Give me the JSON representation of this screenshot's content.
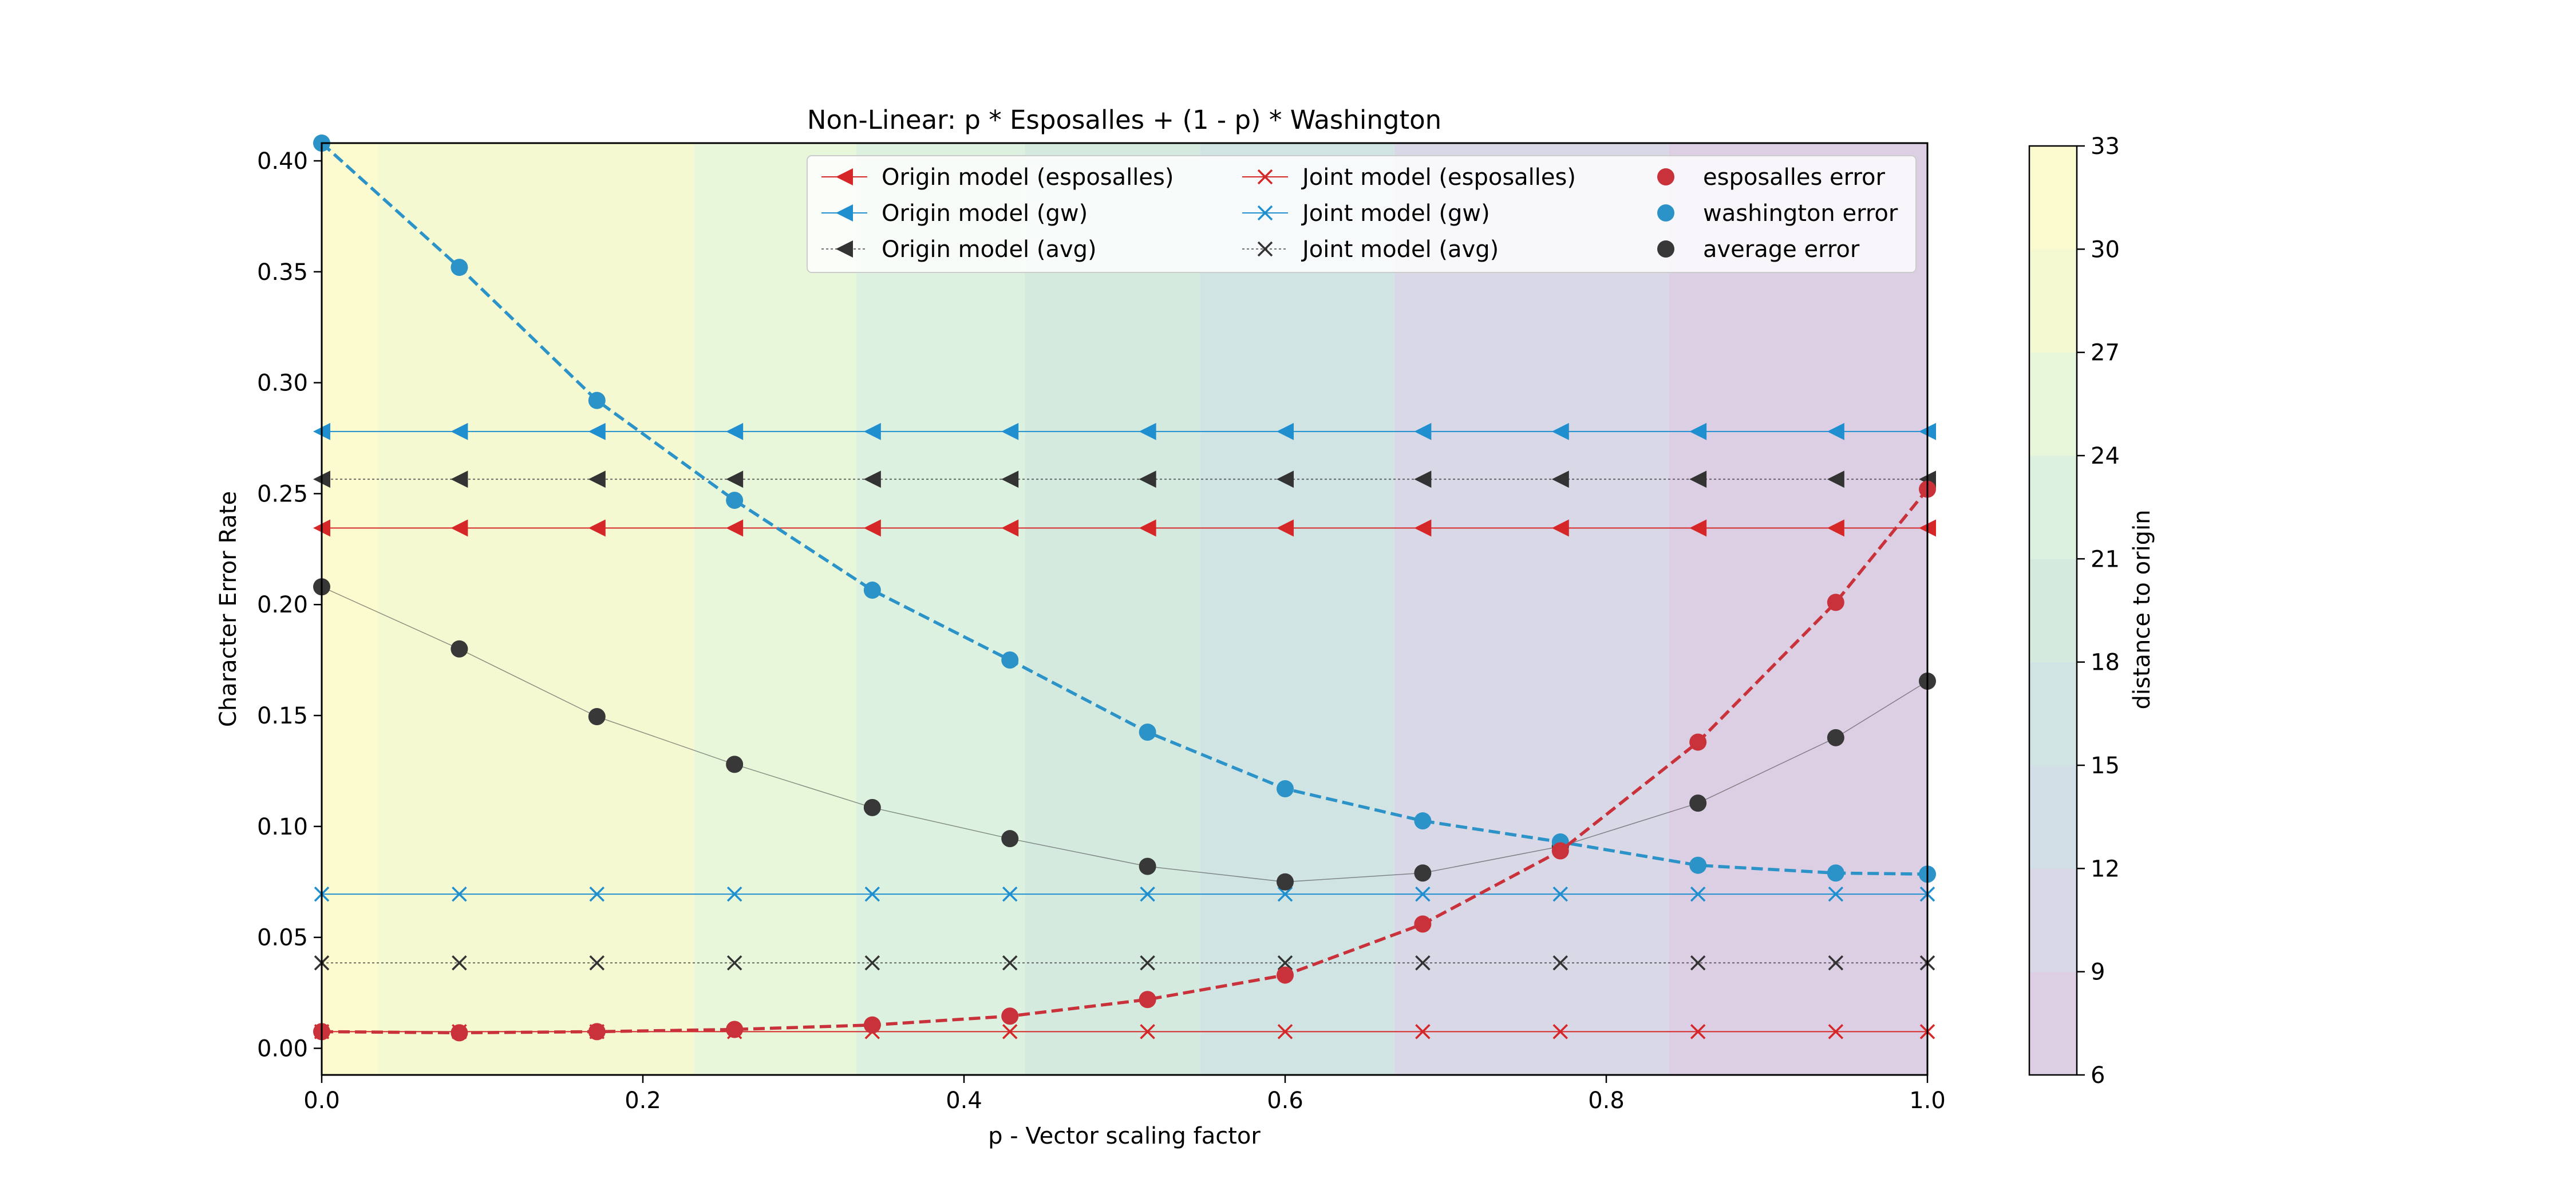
{
  "chart_data": {
    "type": "line",
    "title": "Non-Linear: p * Esposalles + (1 - p) * Washington",
    "xlabel": "p - Vector scaling factor",
    "ylabel": "Character Error Rate",
    "xlim": [
      0.0,
      1.0
    ],
    "ylim": [
      -0.012,
      0.408
    ],
    "x_ticks": [
      {
        "value": 0.0,
        "label": "0.0"
      },
      {
        "value": 0.2,
        "label": "0.2"
      },
      {
        "value": 0.4,
        "label": "0.4"
      },
      {
        "value": 0.6,
        "label": "0.6"
      },
      {
        "value": 0.8,
        "label": "0.8"
      },
      {
        "value": 1.0,
        "label": "1.0"
      }
    ],
    "y_ticks": [
      {
        "value": 0.0,
        "label": "0.00"
      },
      {
        "value": 0.05,
        "label": "0.05"
      },
      {
        "value": 0.1,
        "label": "0.10"
      },
      {
        "value": 0.15,
        "label": "0.15"
      },
      {
        "value": 0.2,
        "label": "0.20"
      },
      {
        "value": 0.25,
        "label": "0.25"
      },
      {
        "value": 0.3,
        "label": "0.30"
      },
      {
        "value": 0.35,
        "label": "0.35"
      },
      {
        "value": 0.4,
        "label": "0.40"
      }
    ],
    "grid": false,
    "legend_position": "top-right",
    "x": [
      0.0,
      0.0857,
      0.1714,
      0.2571,
      0.3429,
      0.4286,
      0.5143,
      0.6,
      0.6857,
      0.7714,
      0.8571,
      0.9429,
      1.0
    ],
    "background_bands": {
      "x_edges": [
        0.0,
        0.035,
        0.133,
        0.232,
        0.333,
        0.438,
        0.547,
        0.668,
        0.839,
        1.0
      ],
      "distance": [
        32.5,
        29.5,
        27,
        24.5,
        22,
        18.5,
        16,
        11.5,
        8.5
      ]
    },
    "colorbar": {
      "label": "distance to origin",
      "min": 6,
      "max": 33,
      "ticks": [
        {
          "value": 6,
          "label": "6"
        },
        {
          "value": 9,
          "label": "9"
        },
        {
          "value": 12,
          "label": "12"
        },
        {
          "value": 15,
          "label": "15"
        },
        {
          "value": 18,
          "label": "18"
        },
        {
          "value": 21,
          "label": "21"
        },
        {
          "value": 24,
          "label": "24"
        },
        {
          "value": 27,
          "label": "27"
        },
        {
          "value": 30,
          "label": "30"
        },
        {
          "value": 33,
          "label": "33"
        }
      ],
      "colors": [
        "#dccfe3",
        "#d9d8e7",
        "#d2dfe6",
        "#d1e4e4",
        "#d4eadf",
        "#dcf1e0",
        "#e8f6da",
        "#f4f9d2",
        "#fbfbcf"
      ]
    },
    "series": [
      {
        "name": "Origin model (esposalles)",
        "color": "#d62728",
        "marker": "triangle-left",
        "line": "solid",
        "values": [
          0.2345,
          0.2345,
          0.2345,
          0.2345,
          0.2345,
          0.2345,
          0.2345,
          0.2345,
          0.2345,
          0.2345,
          0.2345,
          0.2345,
          0.2345
        ]
      },
      {
        "name": "Origin model (gw)",
        "color": "#1f8fd0",
        "marker": "triangle-left",
        "line": "solid",
        "values": [
          0.278,
          0.278,
          0.278,
          0.278,
          0.278,
          0.278,
          0.278,
          0.278,
          0.278,
          0.278,
          0.278,
          0.278,
          0.278
        ]
      },
      {
        "name": "Origin model (avg)",
        "color": "#333333",
        "marker": "triangle-left",
        "line": "dotted",
        "values": [
          0.2565,
          0.2565,
          0.2565,
          0.2565,
          0.2565,
          0.2565,
          0.2565,
          0.2565,
          0.2565,
          0.2565,
          0.2565,
          0.2565,
          0.2565
        ]
      },
      {
        "name": "Joint model (esposalles)",
        "color": "#d62728",
        "marker": "x",
        "line": "solid",
        "values": [
          0.0075,
          0.0075,
          0.0075,
          0.0075,
          0.0075,
          0.0075,
          0.0075,
          0.0075,
          0.0075,
          0.0075,
          0.0075,
          0.0075,
          0.0075
        ]
      },
      {
        "name": "Joint model (gw)",
        "color": "#1f8fd0",
        "marker": "x",
        "line": "solid",
        "values": [
          0.0695,
          0.0695,
          0.0695,
          0.0695,
          0.0695,
          0.0695,
          0.0695,
          0.0695,
          0.0695,
          0.0695,
          0.0695,
          0.0695,
          0.0695
        ]
      },
      {
        "name": "Joint model (avg)",
        "color": "#333333",
        "marker": "x",
        "line": "dotted",
        "values": [
          0.0385,
          0.0385,
          0.0385,
          0.0385,
          0.0385,
          0.0385,
          0.0385,
          0.0385,
          0.0385,
          0.0385,
          0.0385,
          0.0385,
          0.0385
        ]
      },
      {
        "name": "esposalles error",
        "color": "#c9323a",
        "marker": "circle",
        "line": "dashed",
        "values": [
          0.0075,
          0.007,
          0.0075,
          0.0085,
          0.0105,
          0.0145,
          0.022,
          0.033,
          0.056,
          0.089,
          0.138,
          0.201,
          0.252
        ]
      },
      {
        "name": "washington error",
        "color": "#2b93c8",
        "marker": "circle",
        "line": "dashed",
        "values": [
          0.408,
          0.352,
          0.292,
          0.247,
          0.2065,
          0.175,
          0.1425,
          0.117,
          0.1025,
          0.093,
          0.0825,
          0.079,
          0.0785
        ]
      },
      {
        "name": "average error",
        "color": "#383838",
        "marker": "circle",
        "line": "thin",
        "values": [
          0.208,
          0.18,
          0.1495,
          0.128,
          0.1085,
          0.0945,
          0.082,
          0.075,
          0.079,
          0.091,
          0.1105,
          0.14,
          0.1655
        ]
      }
    ]
  }
}
